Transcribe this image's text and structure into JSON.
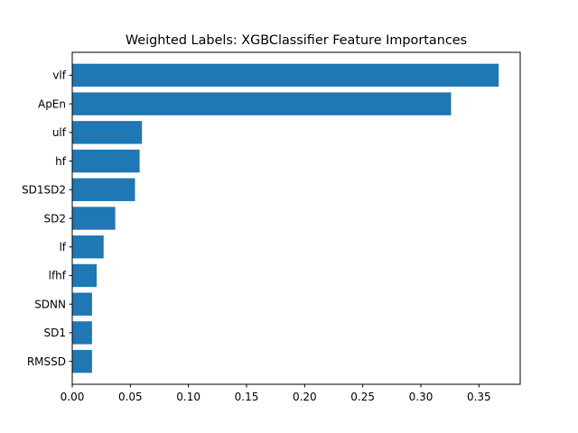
{
  "chart_data": {
    "type": "bar",
    "orientation": "horizontal",
    "title": "Weighted Labels: XGBClassifier Feature Importances",
    "xlabel": "",
    "ylabel": "",
    "categories": [
      "vlf",
      "ApEn",
      "ulf",
      "hf",
      "SD1SD2",
      "SD2",
      "lf",
      "lfhf",
      "SDNN",
      "SD1",
      "RMSSD"
    ],
    "values": [
      0.367,
      0.326,
      0.06,
      0.058,
      0.054,
      0.037,
      0.027,
      0.021,
      0.017,
      0.017,
      0.017
    ],
    "xlim": [
      0.0,
      0.3855
    ],
    "xticks": [
      0.0,
      0.05,
      0.1,
      0.15,
      0.2,
      0.25,
      0.3,
      0.35
    ],
    "xtick_labels": [
      "0.00",
      "0.05",
      "0.10",
      "0.15",
      "0.20",
      "0.25",
      "0.30",
      "0.35"
    ],
    "grid": false,
    "legend": "none",
    "colors": {
      "bar": "#1f77b4",
      "axis": "#000000"
    }
  }
}
